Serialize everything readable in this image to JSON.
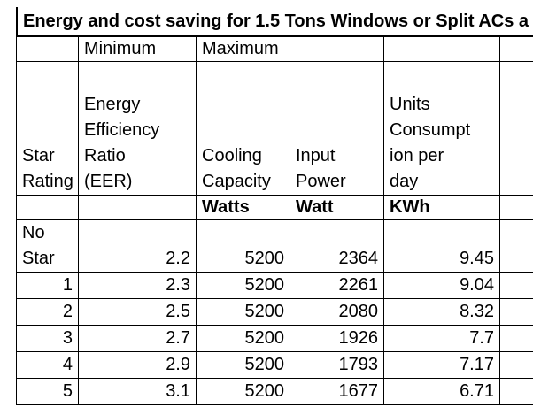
{
  "title": "Energy and cost saving for 1.5 Tons Windows or Split ACs a",
  "subheader": [
    "",
    "Minimum",
    "Maximum",
    "",
    "",
    ""
  ],
  "headers": {
    "star": [
      "Star",
      "Rating"
    ],
    "eer": [
      "Energy",
      "Efficiency",
      "Ratio",
      "(EER)"
    ],
    "cooling": [
      "Cooling",
      "Capacity"
    ],
    "input": [
      "Input",
      "Power"
    ],
    "units": [
      "Units",
      "Consumpt",
      "ion per",
      "day"
    ]
  },
  "units_row": [
    "",
    "",
    "Watts",
    "Watt",
    "KWh",
    ""
  ],
  "rows": [
    {
      "star": "No Star",
      "star_lines": [
        "No",
        "Star"
      ],
      "eer": "2.2",
      "cooling": "5200",
      "input": "2364",
      "kwh": "9.45"
    },
    {
      "star": "1",
      "eer": "2.3",
      "cooling": "5200",
      "input": "2261",
      "kwh": "9.04"
    },
    {
      "star": "2",
      "eer": "2.5",
      "cooling": "5200",
      "input": "2080",
      "kwh": "8.32"
    },
    {
      "star": "3",
      "eer": "2.7",
      "cooling": "5200",
      "input": "1926",
      "kwh": "7.7"
    },
    {
      "star": "4",
      "eer": "2.9",
      "cooling": "5200",
      "input": "1793",
      "kwh": "7.17"
    },
    {
      "star": "5",
      "eer": "3.1",
      "cooling": "5200",
      "input": "1677",
      "kwh": "6.71"
    }
  ]
}
